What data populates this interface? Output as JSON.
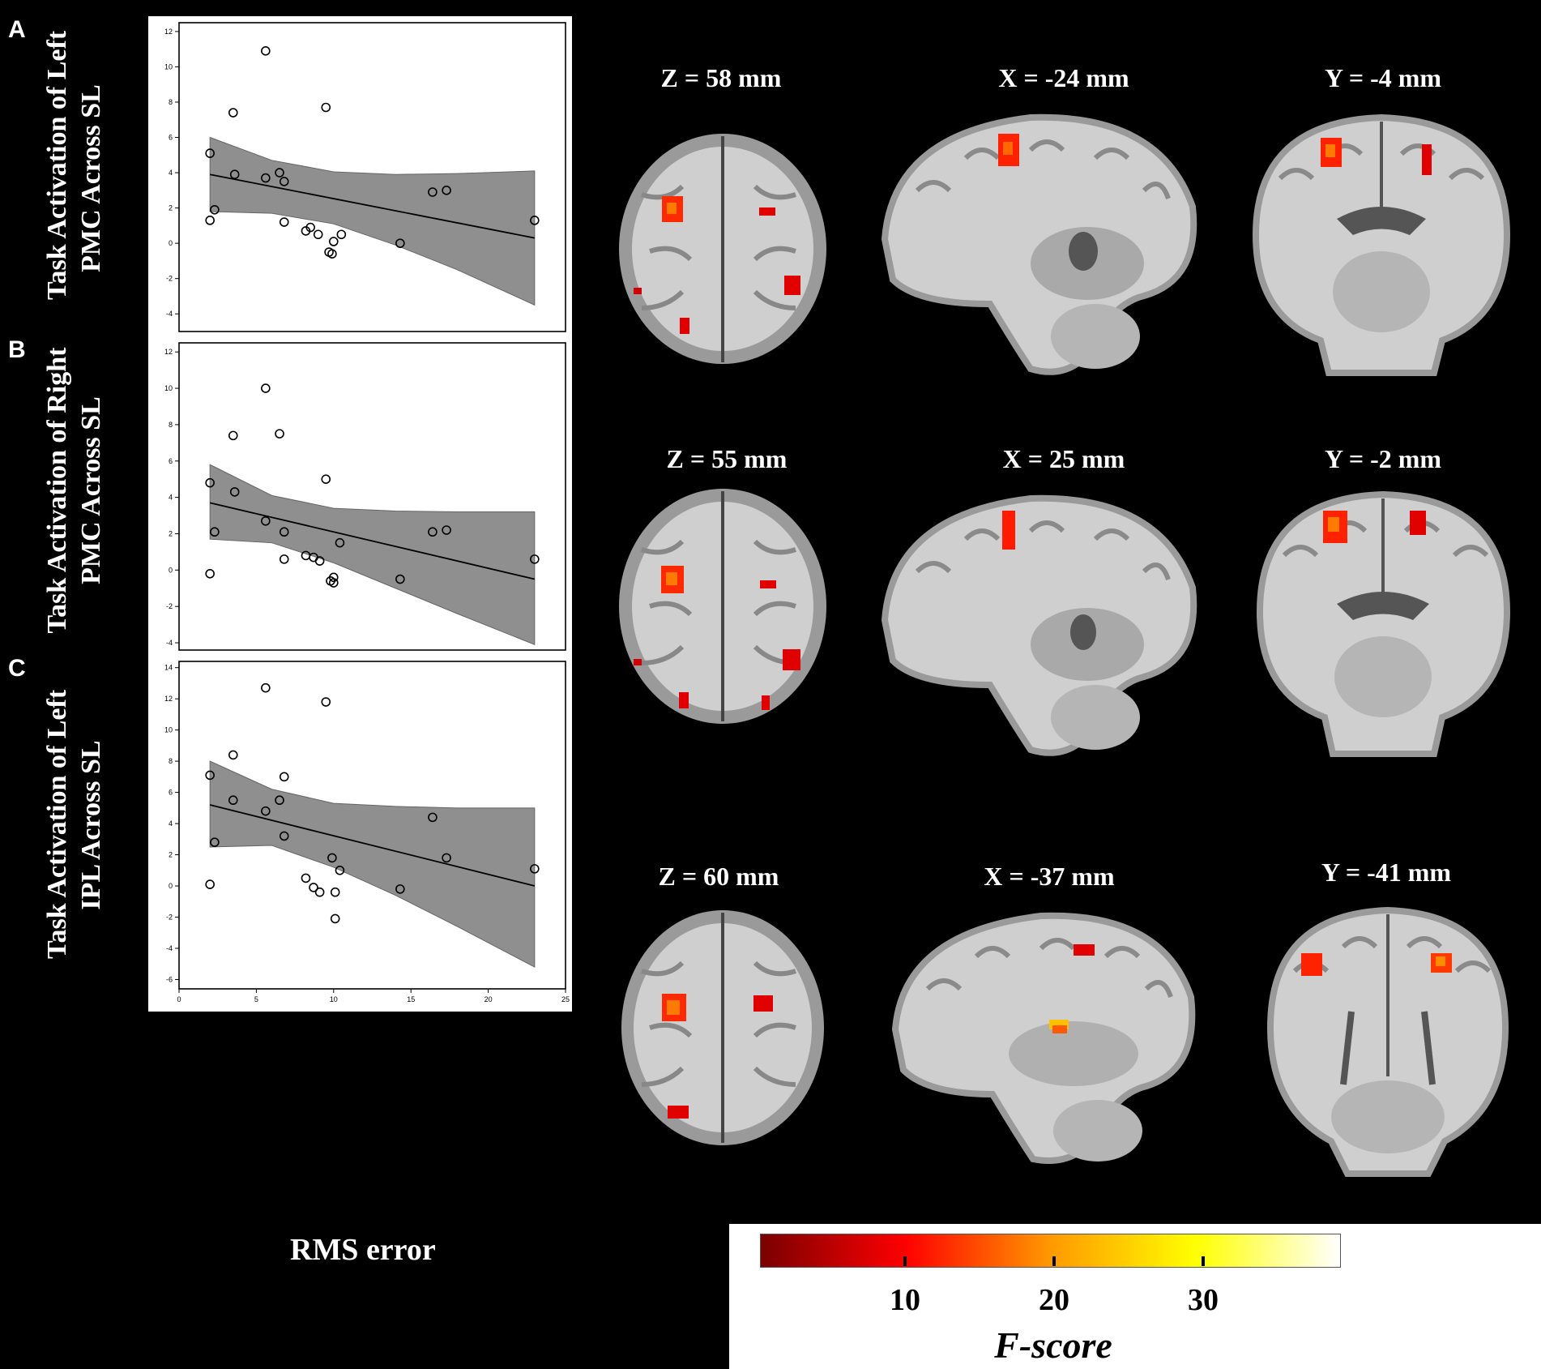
{
  "panels": [
    {
      "letter": "A",
      "ylabel_line1": "Task Activation of Left",
      "ylabel_line2": "PMC Across SL",
      "slices": [
        {
          "label": "Z = 58 mm",
          "view": "axial"
        },
        {
          "label": "X = -24 mm",
          "view": "sagittal"
        },
        {
          "label": "Y = -4 mm",
          "view": "coronal"
        }
      ]
    },
    {
      "letter": "B",
      "ylabel_line1": "Task Activation of Right",
      "ylabel_line2": "PMC Across SL",
      "slices": [
        {
          "label": "Z = 55 mm",
          "view": "axial"
        },
        {
          "label": "X = 25 mm",
          "view": "sagittal"
        },
        {
          "label": "Y = -2 mm",
          "view": "coronal"
        }
      ]
    },
    {
      "letter": "C",
      "ylabel_line1": "Task Activation of Left",
      "ylabel_line2": "IPL Across SL",
      "slices": [
        {
          "label": "Z = 60 mm",
          "view": "axial"
        },
        {
          "label": "X = -37 mm",
          "view": "sagittal"
        },
        {
          "label": "Y = -41 mm",
          "view": "coronal"
        }
      ]
    }
  ],
  "xlabel": "RMS error",
  "colorbar": {
    "ticks": [
      "10",
      "20",
      "30"
    ],
    "title": "F-score",
    "colors": [
      "#7a0000",
      "#ff0000",
      "#ff9900",
      "#ffff00",
      "#ffffff"
    ]
  },
  "chart_data": [
    {
      "type": "scatter",
      "xlim": [
        0,
        25
      ],
      "ylim": [
        -5,
        12.5
      ],
      "yticks": [
        -4,
        -2,
        0,
        2,
        4,
        6,
        8,
        10,
        12
      ],
      "xticks": [],
      "fit": {
        "x": [
          2,
          23
        ],
        "y": [
          3.9,
          0.3
        ]
      },
      "band": {
        "x": [
          2,
          6,
          10,
          14,
          18,
          23
        ],
        "upper": [
          6.0,
          4.7,
          4.05,
          3.9,
          3.95,
          4.1
        ],
        "lower": [
          1.8,
          1.7,
          1.1,
          -0.1,
          -1.5,
          -3.5
        ]
      },
      "points": [
        [
          2,
          5.1
        ],
        [
          2,
          1.3
        ],
        [
          2.3,
          1.9
        ],
        [
          3.5,
          7.4
        ],
        [
          3.6,
          3.9
        ],
        [
          5.6,
          10.9
        ],
        [
          5.6,
          3.7
        ],
        [
          6.5,
          4.0
        ],
        [
          6.8,
          3.5
        ],
        [
          6.8,
          1.2
        ],
        [
          8.2,
          0.7
        ],
        [
          8.5,
          0.9
        ],
        [
          9.0,
          0.5
        ],
        [
          9.5,
          7.7
        ],
        [
          9.7,
          -0.5
        ],
        [
          9.9,
          -0.6
        ],
        [
          10.0,
          0.1
        ],
        [
          10.5,
          0.5
        ],
        [
          14.3,
          0.0
        ],
        [
          16.4,
          2.9
        ],
        [
          17.3,
          3.0
        ],
        [
          23,
          1.3
        ]
      ]
    },
    {
      "type": "scatter",
      "xlim": [
        0,
        25
      ],
      "ylim": [
        -4.4,
        12.5
      ],
      "yticks": [
        -4,
        -2,
        0,
        2,
        4,
        6,
        8,
        10,
        12
      ],
      "xticks": [],
      "fit": {
        "x": [
          2,
          23
        ],
        "y": [
          3.7,
          -0.5
        ]
      },
      "band": {
        "x": [
          2,
          6,
          10,
          14,
          18,
          23
        ],
        "upper": [
          5.8,
          4.1,
          3.4,
          3.25,
          3.2,
          3.2
        ],
        "lower": [
          1.7,
          1.5,
          0.4,
          -1.0,
          -2.4,
          -4.1
        ]
      },
      "points": [
        [
          2,
          4.8
        ],
        [
          2,
          -0.2
        ],
        [
          2.3,
          2.1
        ],
        [
          3.5,
          7.4
        ],
        [
          3.6,
          4.3
        ],
        [
          5.6,
          10.0
        ],
        [
          5.6,
          2.7
        ],
        [
          6.5,
          7.5
        ],
        [
          6.8,
          2.1
        ],
        [
          6.8,
          0.6
        ],
        [
          8.2,
          0.8
        ],
        [
          8.7,
          0.7
        ],
        [
          9.1,
          0.5
        ],
        [
          9.5,
          5.0
        ],
        [
          9.8,
          -0.6
        ],
        [
          10.0,
          -0.4
        ],
        [
          10.0,
          -0.7
        ],
        [
          10.4,
          1.5
        ],
        [
          14.3,
          -0.5
        ],
        [
          16.4,
          2.1
        ],
        [
          17.3,
          2.2
        ],
        [
          23,
          0.6
        ]
      ]
    },
    {
      "type": "scatter",
      "xlim": [
        0,
        25
      ],
      "ylim": [
        -6.6,
        14.4
      ],
      "yticks": [
        -6,
        -4,
        -2,
        0,
        2,
        4,
        6,
        8,
        10,
        12,
        14
      ],
      "xticks": [
        0,
        5,
        10,
        15,
        20,
        25
      ],
      "fit": {
        "x": [
          2,
          23
        ],
        "y": [
          5.2,
          0.0
        ]
      },
      "band": {
        "x": [
          2,
          6,
          10,
          14,
          18,
          23
        ],
        "upper": [
          8.0,
          6.2,
          5.3,
          5.1,
          5.0,
          5.0
        ],
        "lower": [
          2.5,
          2.6,
          1.2,
          -0.6,
          -2.6,
          -5.2
        ]
      },
      "points": [
        [
          2,
          7.1
        ],
        [
          2,
          0.1
        ],
        [
          2.3,
          2.8
        ],
        [
          3.5,
          8.4
        ],
        [
          3.5,
          5.5
        ],
        [
          5.6,
          12.7
        ],
        [
          5.6,
          4.8
        ],
        [
          6.5,
          5.5
        ],
        [
          6.8,
          7.0
        ],
        [
          6.8,
          3.2
        ],
        [
          8.2,
          0.5
        ],
        [
          8.7,
          -0.1
        ],
        [
          9.1,
          -0.4
        ],
        [
          9.5,
          11.8
        ],
        [
          9.9,
          1.8
        ],
        [
          10.1,
          -0.4
        ],
        [
          10.1,
          -2.1
        ],
        [
          10.4,
          1.0
        ],
        [
          14.3,
          -0.2
        ],
        [
          16.4,
          4.4
        ],
        [
          17.3,
          1.8
        ],
        [
          23,
          1.1
        ]
      ]
    }
  ]
}
